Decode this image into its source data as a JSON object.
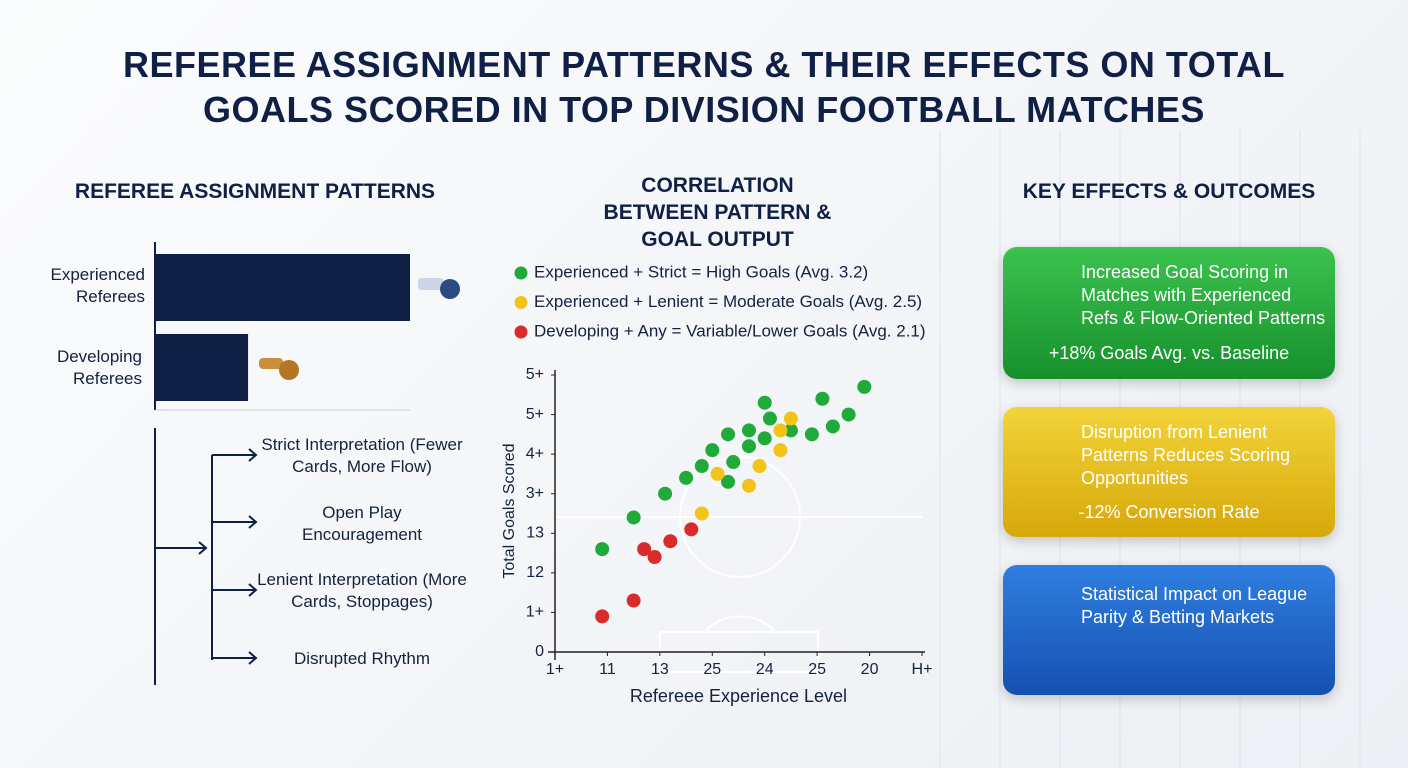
{
  "title": "REFEREE ASSIGNMENT PATTERNS & THEIR EFFECTS ON TOTAL GOALS SCORED IN TOP DIVISION FOOTBALL MATCHES",
  "chart_data": [
    {
      "type": "hbar",
      "title": "REFEREE ASSIGNMENT PATTERNS",
      "categories": [
        "Experienced Referees",
        "Developing Referees"
      ],
      "values": [
        100,
        36.5
      ],
      "color": "#0f1f45"
    },
    {
      "type": "scatter",
      "title": "CORRELATION BETWEEN PATTERN & GOAL OUTPUT",
      "x_label": "Refereee Experience Level",
      "y_label": "Total Goals Scored",
      "xlim": [
        0,
        7
      ],
      "ylim": [
        0,
        7
      ],
      "xticks": [
        {
          "value": 0,
          "label": "1+"
        },
        {
          "value": 1,
          "label": "11"
        },
        {
          "value": 2,
          "label": "13"
        },
        {
          "value": 3,
          "label": "25"
        },
        {
          "value": 4,
          "label": "24"
        },
        {
          "value": 5,
          "label": "25"
        },
        {
          "value": 6,
          "label": "20"
        },
        {
          "value": 7,
          "label": "H+"
        }
      ],
      "yticks": [
        0,
        {
          "value": 1,
          "label": "1+"
        },
        {
          "value": 2,
          "label": "12"
        },
        {
          "value": 3,
          "label": "13"
        },
        {
          "value": 4,
          "label": "3+"
        },
        {
          "value": 5,
          "label": "4+"
        },
        {
          "value": 6,
          "label": "5+"
        },
        {
          "value": 7,
          "label": "5+"
        }
      ],
      "series": [
        {
          "name": "Experienced + Strict = High Goals (Avg. 3.2)",
          "color": "#1faa3a",
          "x": [
            0.9,
            1.5,
            2.1,
            2.5,
            2.8,
            3.0,
            3.3,
            3.4,
            3.7,
            3.7,
            4.0,
            4.0,
            4.1,
            4.5,
            4.9,
            5.1,
            5.3,
            5.6,
            5.9,
            3.3
          ],
          "values": [
            2.6,
            3.4,
            4.0,
            4.4,
            4.7,
            5.1,
            5.5,
            4.8,
            5.6,
            5.2,
            5.4,
            6.3,
            5.9,
            5.6,
            5.5,
            6.4,
            5.7,
            6.0,
            6.7,
            4.3
          ]
        },
        {
          "name": "Experienced + Lenient = Moderate Goals (Avg. 2.5)",
          "color": "#f2c318",
          "x": [
            3.1,
            2.8,
            3.7,
            3.9,
            4.3,
            4.5,
            4.3
          ],
          "values": [
            4.5,
            3.5,
            4.2,
            4.7,
            5.6,
            5.9,
            5.1
          ]
        },
        {
          "name": "Developing + Any = Variable/Lower Goals (Avg. 2.1)",
          "color": "#d92b2b",
          "x": [
            0.9,
            1.5,
            1.7,
            1.9,
            2.2,
            2.6
          ],
          "values": [
            0.9,
            1.3,
            2.6,
            2.4,
            2.8,
            3.1
          ]
        }
      ]
    }
  ],
  "flow": [
    "Strict Interpretation (Fewer Cards, More Flow)",
    "Open Play Encouragement",
    "Lenient Interpretation (More Cards, Stoppages)",
    "Disrupted Rhythm"
  ],
  "effects": {
    "title": "KEY EFFECTS & OUTCOMES",
    "cards": [
      {
        "text": "Increased Goal Scoring in Matches with Experienced Refs & Flow-Oriented Patterns",
        "stat": "+18% Goals Avg. vs. Baseline"
      },
      {
        "text": "Disruption from Lenient Patterns Reduces Scoring Opportunities",
        "stat": "-12% Conversion Rate"
      },
      {
        "text": "Statistical Impact on League Parity & Betting Markets"
      }
    ]
  }
}
